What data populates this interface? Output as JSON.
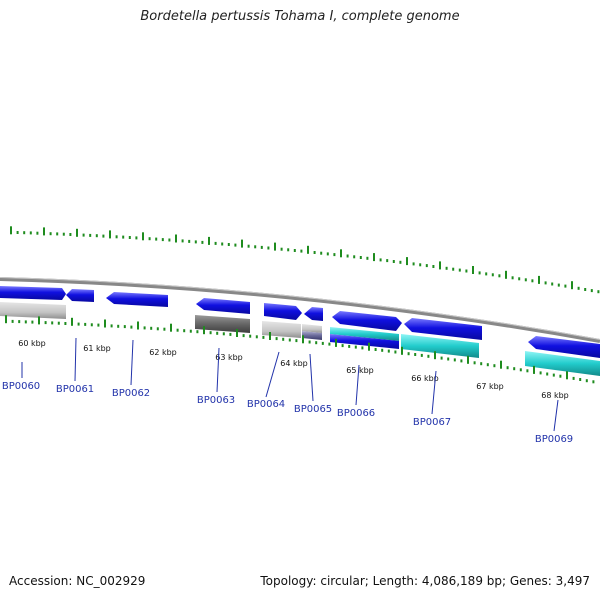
{
  "title": "Bordetella pertussis Tohama I, complete genome",
  "footer": {
    "accession": "Accession: NC_002929",
    "summary": "Topology: circular; Length: 4,086,189 bp; Genes: 3,497"
  },
  "colors": {
    "forward_gene": "#1a1ae6",
    "backbone": "#888888",
    "ticks": "#1e8c1e",
    "gene_label": "#2233aa",
    "cyan": "#22d3d3",
    "dark_gray": "#666666",
    "light_gray": "#c8c8c8",
    "slate": "#6a6a9a"
  },
  "scale_labels": [
    "60 kbp",
    "61 kbp",
    "62 kbp",
    "63 kbp",
    "64 kbp",
    "65 kbp",
    "66 kbp",
    "67 kbp",
    "68 kbp"
  ],
  "gene_labels": [
    "BP0060",
    "BP0061",
    "BP0062",
    "BP0063",
    "BP0064",
    "BP0065",
    "BP0066",
    "BP0067",
    "BP0069"
  ]
}
